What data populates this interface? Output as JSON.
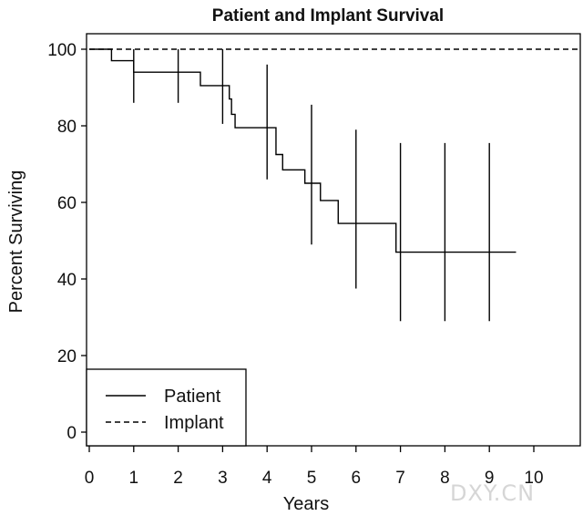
{
  "chart_data": {
    "type": "line",
    "title": "Patient and Implant Survival",
    "xlabel": "Years",
    "ylabel": "Percent Surviving",
    "xlim": [
      0,
      11
    ],
    "ylim": [
      -4,
      104
    ],
    "xticks": [
      0,
      1,
      2,
      3,
      4,
      5,
      6,
      7,
      8,
      9,
      10
    ],
    "yticks": [
      0,
      20,
      40,
      60,
      80,
      100
    ],
    "grid": false,
    "legend_position": "bottom-left",
    "series": [
      {
        "name": "Patient",
        "style": "solid",
        "color": "#000000",
        "step_x": [
          0,
          0.5,
          1.0,
          2.0,
          2.5,
          3.15,
          3.2,
          3.28,
          4.0,
          4.2,
          4.35,
          4.85,
          5.2,
          5.6,
          6.0,
          6.9,
          7.0,
          8.0,
          9.0,
          9.6
        ],
        "step_y": [
          100,
          97,
          94,
          94,
          90.5,
          87,
          83,
          79.5,
          79.5,
          72.5,
          68.5,
          65,
          60.5,
          54.5,
          54.5,
          47,
          47,
          47,
          47,
          47
        ],
        "error_bars": [
          {
            "x": 1,
            "low": 86,
            "high": 100
          },
          {
            "x": 2,
            "low": 86,
            "high": 100
          },
          {
            "x": 3,
            "low": 80.5,
            "high": 100
          },
          {
            "x": 4,
            "low": 66,
            "high": 96
          },
          {
            "x": 5,
            "low": 49,
            "high": 85.5
          },
          {
            "x": 6,
            "low": 37.5,
            "high": 79
          },
          {
            "x": 7,
            "low": 29,
            "high": 75.5
          },
          {
            "x": 8,
            "low": 29,
            "high": 75.5
          },
          {
            "x": 9,
            "low": 29,
            "high": 75.5
          }
        ]
      },
      {
        "name": "Implant",
        "style": "dashed",
        "color": "#000000",
        "x": [
          0,
          11
        ],
        "y": [
          100,
          100
        ]
      }
    ]
  },
  "watermark": "DXY.CN"
}
